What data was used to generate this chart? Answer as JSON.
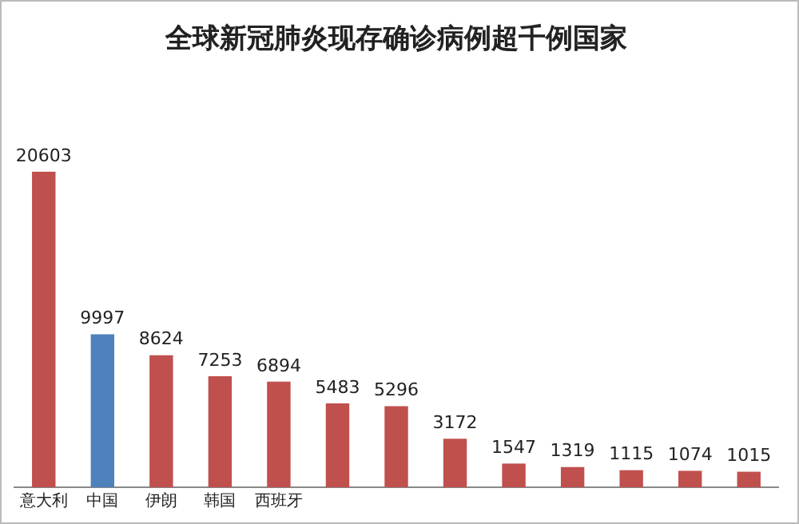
{
  "chart_data": {
    "type": "bar",
    "title": "全球新冠肺炎现存确诊病例超千例国家",
    "categories": [
      "意大利",
      "中国",
      "伊朗",
      "韩国",
      "西班牙",
      null,
      null,
      null,
      null,
      null,
      null,
      null,
      null
    ],
    "values": [
      20603,
      9997,
      8624,
      7253,
      6894,
      5483,
      5296,
      3172,
      1547,
      1319,
      1115,
      1074,
      1015
    ],
    "colors": [
      "#c0504d",
      "#4f81bd",
      "#c0504d",
      "#c0504d",
      "#c0504d",
      "#c0504d",
      "#c0504d",
      "#c0504d",
      "#c0504d",
      "#c0504d",
      "#c0504d",
      "#c0504d",
      "#c0504d"
    ],
    "data_labels": true,
    "grid": false,
    "legend": false
  }
}
